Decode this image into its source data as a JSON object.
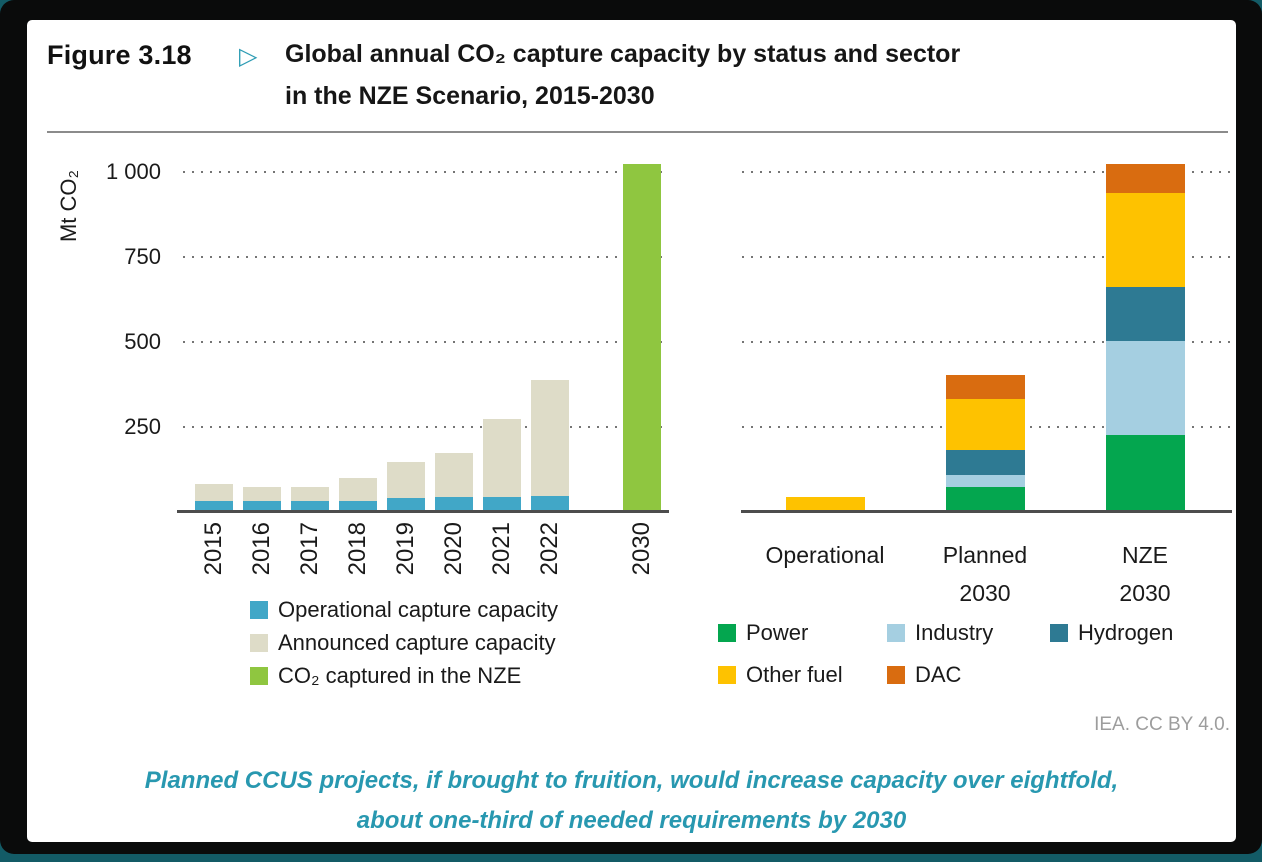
{
  "figure": {
    "label": "Figure 3.18",
    "pointer": "▷",
    "title_line1": "Global annual CO₂ capture capacity by status and sector",
    "title_line2": "in the NZE Scenario, 2015-2030"
  },
  "axis": {
    "ylabel": "Mt CO₂"
  },
  "credit": {
    "text": "IEA. CC BY 4.0."
  },
  "caption": {
    "line1": "Planned CCUS projects, if brought to fruition, would increase capacity over eightfold,",
    "line2": "about one-third of needed requirements by 2030"
  },
  "chart_data": [
    {
      "type": "bar",
      "stacked": true,
      "title": "",
      "xlabel": "",
      "ylabel": "Mt CO₂",
      "units": "Mt CO₂",
      "ylim": [
        0,
        1050
      ],
      "grid": "dotted-horizontal",
      "legend_position": "below",
      "yticks": [
        {
          "label": "250",
          "value": 250
        },
        {
          "label": "500",
          "value": 500
        },
        {
          "label": "750",
          "value": 750
        },
        {
          "label": "1 000",
          "value": 1000
        }
      ],
      "categories": [
        "2015",
        "2016",
        "2017",
        "2018",
        "2019",
        "2020",
        "2021",
        "2022",
        "2030"
      ],
      "series": [
        {
          "name": "Operational capture capacity",
          "color": "#41a7c7",
          "values": [
            30,
            30,
            30,
            30,
            38,
            40,
            40,
            43,
            0
          ]
        },
        {
          "name": "Announced capture capacity",
          "color": "#dedcc8",
          "values": [
            50,
            40,
            42,
            66,
            107,
            130,
            230,
            342,
            0
          ]
        },
        {
          "name": "CO₂ captured in the NZE",
          "color": "#8fc640",
          "values": [
            0,
            0,
            0,
            0,
            0,
            0,
            0,
            0,
            1020
          ]
        }
      ]
    },
    {
      "type": "bar",
      "stacked": true,
      "title": "",
      "xlabel": "",
      "ylabel": "Mt CO₂",
      "units": "Mt CO₂",
      "ylim": [
        0,
        1050
      ],
      "grid": "dotted-horizontal",
      "legend_position": "below",
      "yticks": [
        {
          "label": "250",
          "value": 250
        },
        {
          "label": "500",
          "value": 500
        },
        {
          "label": "750",
          "value": 750
        },
        {
          "label": "1 000",
          "value": 1000
        }
      ],
      "categories": [
        "Operational",
        "Planned\n2030",
        "NZE\n2030"
      ],
      "series": [
        {
          "name": "Power",
          "color": "#04a64f",
          "values": [
            0,
            70,
            225
          ]
        },
        {
          "name": "Industry",
          "color": "#a5cfe1",
          "values": [
            0,
            35,
            275
          ]
        },
        {
          "name": "Hydrogen",
          "color": "#2e7a93",
          "values": [
            0,
            75,
            160
          ]
        },
        {
          "name": "Other fuel",
          "color": "#fec200",
          "values": [
            40,
            150,
            275
          ]
        },
        {
          "name": "DAC",
          "color": "#d96c10",
          "values": [
            0,
            70,
            85
          ]
        }
      ]
    }
  ]
}
